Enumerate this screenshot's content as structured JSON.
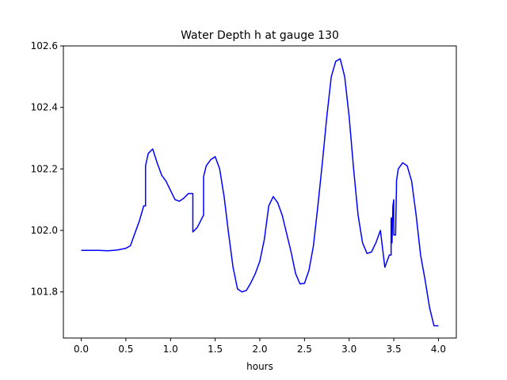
{
  "chart_data": {
    "type": "line",
    "title": "Water Depth h at gauge 130",
    "xlabel": "hours",
    "ylabel": "",
    "xlim": [
      -0.2,
      4.2
    ],
    "ylim": [
      101.65,
      102.6
    ],
    "xticks": [
      0.0,
      0.5,
      1.0,
      1.5,
      2.0,
      2.5,
      3.0,
      3.5,
      4.0
    ],
    "xtick_labels": [
      "0.0",
      "0.5",
      "1.0",
      "1.5",
      "2.0",
      "2.5",
      "3.0",
      "3.5",
      "4.0"
    ],
    "yticks": [
      101.8,
      102.0,
      102.2,
      102.4,
      102.6
    ],
    "ytick_labels": [
      "101.8",
      "102.0",
      "102.2",
      "102.4",
      "102.6"
    ],
    "grid": false,
    "series": [
      {
        "color": "#0000ff",
        "x": [
          0.0,
          0.1,
          0.2,
          0.3,
          0.4,
          0.5,
          0.55,
          0.6,
          0.65,
          0.7,
          0.72,
          0.72,
          0.75,
          0.8,
          0.85,
          0.9,
          0.95,
          1.0,
          1.05,
          1.1,
          1.15,
          1.2,
          1.25,
          1.25,
          1.3,
          1.37,
          1.37,
          1.4,
          1.45,
          1.5,
          1.55,
          1.6,
          1.65,
          1.7,
          1.75,
          1.8,
          1.85,
          1.9,
          1.95,
          2.0,
          2.05,
          2.1,
          2.15,
          2.2,
          2.25,
          2.3,
          2.35,
          2.4,
          2.45,
          2.5,
          2.55,
          2.6,
          2.65,
          2.7,
          2.75,
          2.8,
          2.85,
          2.9,
          2.95,
          3.0,
          3.05,
          3.1,
          3.15,
          3.2,
          3.25,
          3.3,
          3.35,
          3.4,
          3.45,
          3.47,
          3.47,
          3.48,
          3.48,
          3.49,
          3.5,
          3.5,
          3.52,
          3.53,
          3.53,
          3.55,
          3.6,
          3.65,
          3.7,
          3.75,
          3.8,
          3.85,
          3.9,
          3.95,
          4.0
        ],
        "y": [
          101.935,
          101.935,
          101.935,
          101.934,
          101.936,
          101.942,
          101.95,
          101.99,
          102.03,
          102.08,
          102.08,
          102.21,
          102.25,
          102.265,
          102.22,
          102.18,
          102.16,
          102.13,
          102.1,
          102.095,
          102.105,
          102.12,
          102.12,
          101.995,
          102.01,
          102.05,
          102.175,
          102.21,
          102.23,
          102.24,
          102.2,
          102.11,
          101.99,
          101.88,
          101.81,
          101.8,
          101.805,
          101.83,
          101.86,
          101.9,
          101.97,
          102.08,
          102.11,
          102.09,
          102.05,
          101.99,
          101.93,
          101.86,
          101.826,
          101.828,
          101.87,
          101.95,
          102.08,
          102.22,
          102.37,
          102.5,
          102.55,
          102.558,
          102.5,
          102.37,
          102.2,
          102.05,
          101.96,
          101.925,
          101.93,
          101.96,
          102.0,
          101.88,
          101.92,
          101.92,
          102.04,
          102.04,
          101.96,
          102.08,
          102.1,
          101.985,
          101.985,
          102.14,
          102.16,
          102.2,
          102.22,
          102.21,
          102.16,
          102.05,
          101.92,
          101.84,
          101.75,
          101.69,
          101.69
        ]
      }
    ]
  }
}
